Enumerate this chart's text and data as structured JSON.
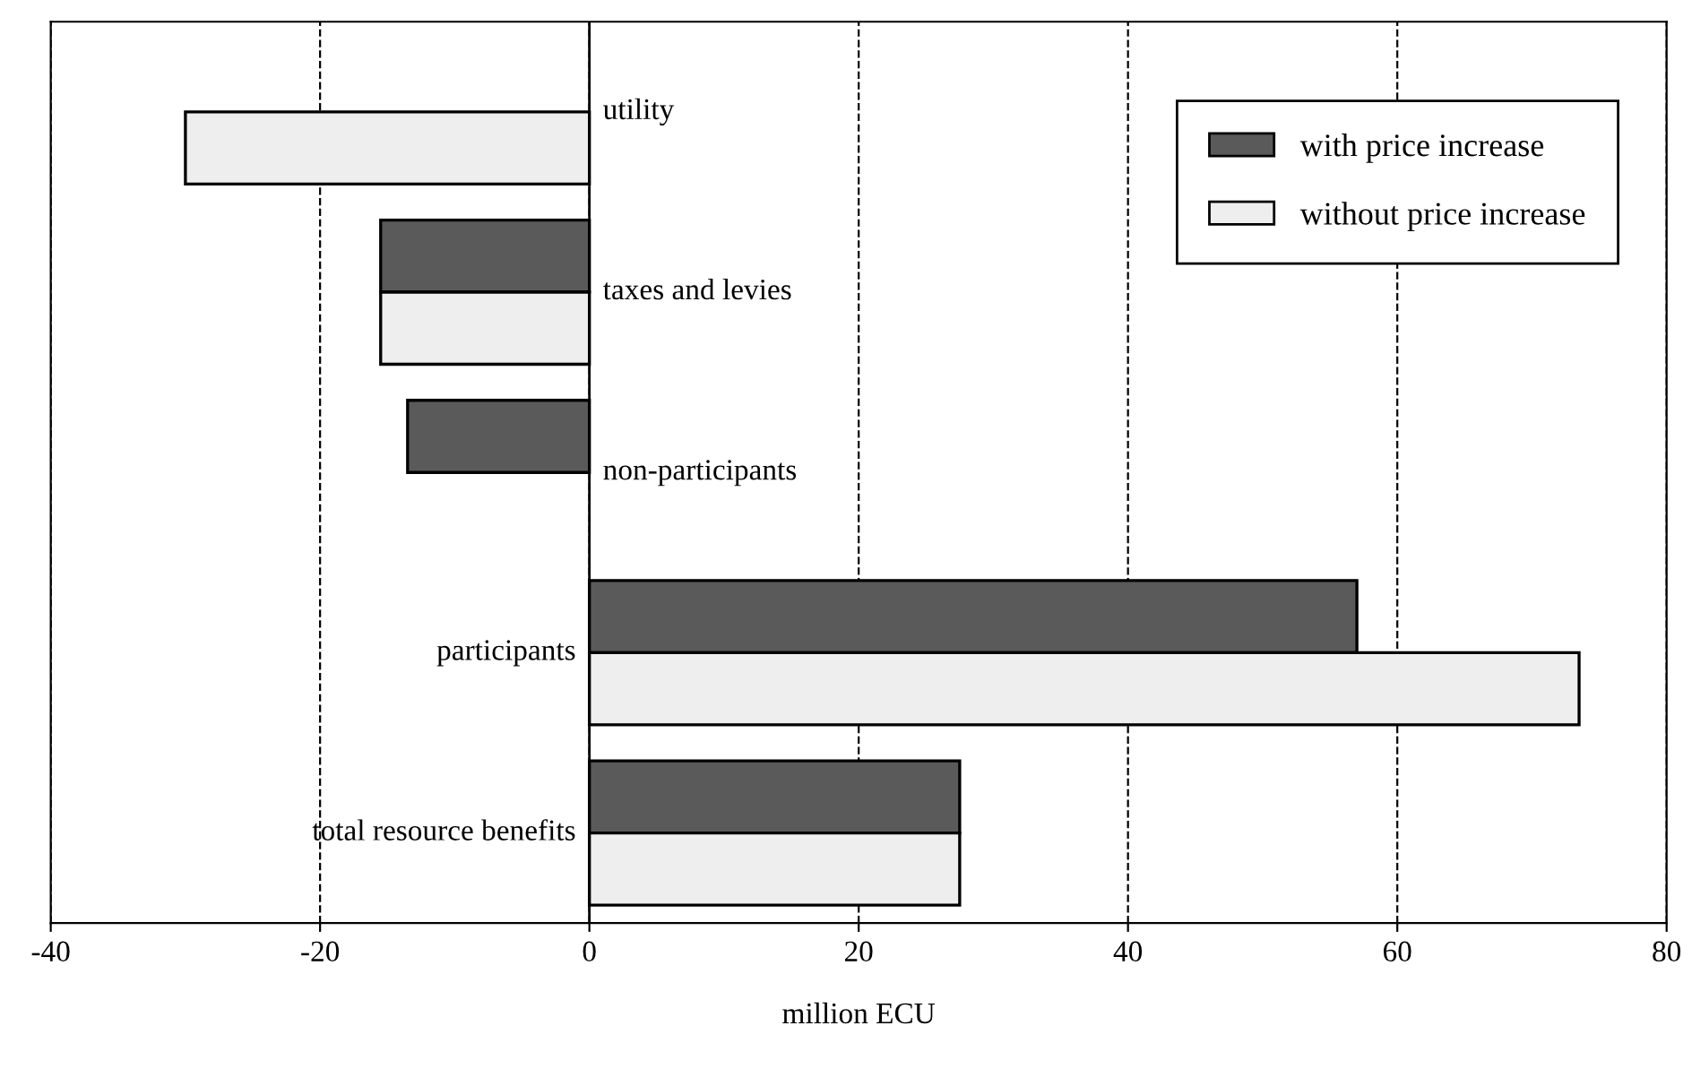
{
  "chart_data": {
    "type": "bar",
    "orientation": "horizontal",
    "xlabel": "million ECU",
    "categories": [
      "utility",
      "taxes and levies",
      "non-participants",
      "participants",
      "total resource benefits"
    ],
    "series": [
      {
        "name": "with price increase",
        "color": "#5a5a5a",
        "values": [
          null,
          -15.5,
          -13.5,
          57,
          27.5
        ]
      },
      {
        "name": "without price increase",
        "color": "#eeeeee",
        "values": [
          -30,
          -15.5,
          null,
          73.5,
          27.5
        ]
      }
    ],
    "xlim": [
      -40,
      80
    ],
    "xticks": [
      -40,
      -20,
      0,
      20,
      40,
      60,
      80
    ],
    "grid": "x",
    "legend": "top right"
  }
}
